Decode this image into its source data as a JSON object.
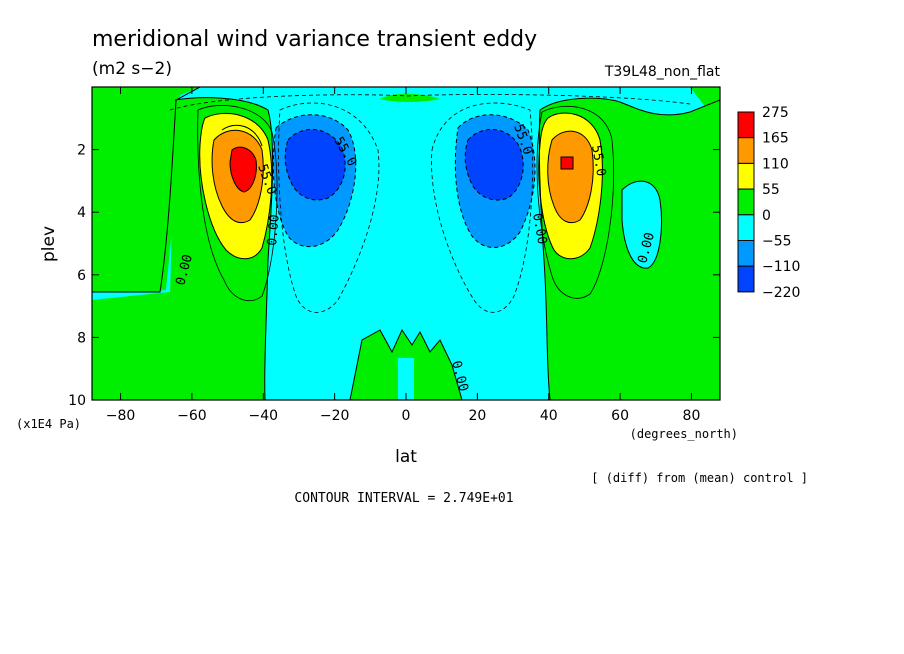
{
  "chart_data": {
    "type": "contour",
    "title": "meridional wind variance transient eddy",
    "units": "(m2 s−2)",
    "run_label": "T39L48_non_flat",
    "xlabel": "lat",
    "xunits": "(degrees_north)",
    "ylabel": "plev",
    "yunits": "(x1E4 Pa)",
    "xlim": [
      -88,
      88
    ],
    "ylim": [
      10,
      0
    ],
    "x_ticks": [
      "−80",
      "−60",
      "−40",
      "−20",
      "0",
      "20",
      "40",
      "60",
      "80"
    ],
    "x_tick_values": [
      -80,
      -60,
      -40,
      -20,
      0,
      20,
      40,
      60,
      80
    ],
    "y_ticks": [
      "2",
      "4",
      "6",
      "8",
      "10"
    ],
    "y_tick_values": [
      2,
      4,
      6,
      8,
      10
    ],
    "note": "[ (diff) from (mean) control ]",
    "contour_interval": "CONTOUR INTERVAL = 2.749E+01",
    "contour_labels": [
      "55.0",
      "55.0",
      "0.00",
      "0.00",
      "0.00",
      "55.0",
      "55.0",
      "0.00",
      "0.00"
    ],
    "legend": {
      "labels": [
        "275",
        "165",
        "110",
        "55",
        "0",
        "−55",
        "−110",
        "−220"
      ],
      "colors": [
        "#ff0000",
        "#ff9900",
        "#ffff00",
        "#00ee00",
        "#00ffff",
        "#0099ff",
        "#0044ff"
      ]
    },
    "features": [
      {
        "kind": "positive",
        "lat": -45,
        "plev": 2.6,
        "peak": 275
      },
      {
        "kind": "negative",
        "lat": -28,
        "plev": 2.6,
        "peak": -220
      },
      {
        "kind": "negative",
        "lat": 28,
        "plev": 2.6,
        "peak": -220
      },
      {
        "kind": "positive",
        "lat": 45,
        "plev": 2.6,
        "peak": 275
      }
    ]
  }
}
